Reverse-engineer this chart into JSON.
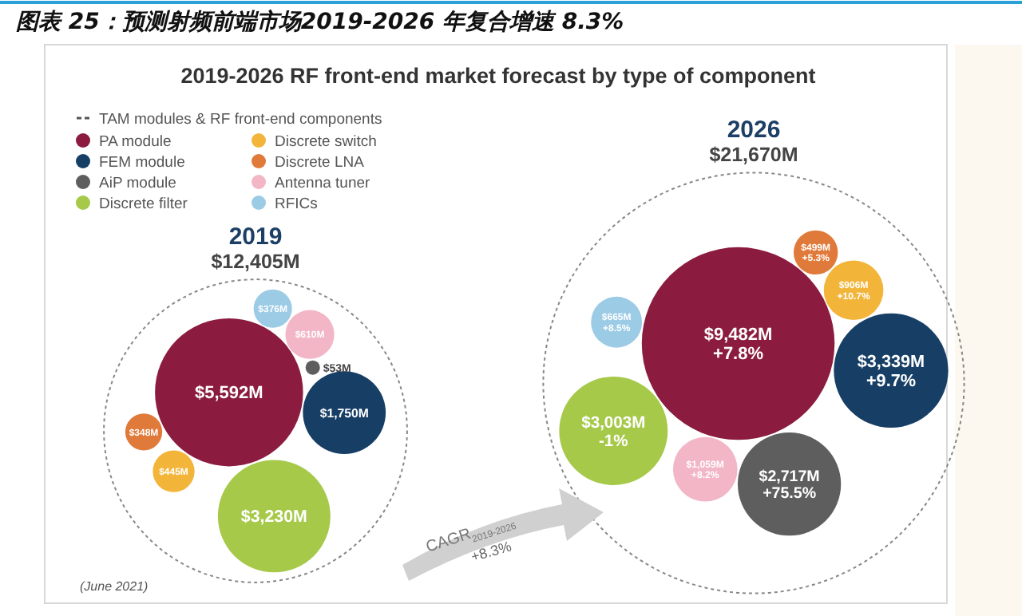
{
  "chart_data": {
    "type": "other",
    "title": "图表 25：预测射频前端市场2019-2026 年复合增速 8.3%",
    "subtitle": "2019-2026 RF front-end market forecast by type of component",
    "legend_title": "TAM modules & RF front-end components",
    "categories": [
      "2019",
      "2026"
    ],
    "series": [
      {
        "name": "PA module",
        "color": "#8b1c3f",
        "values": [
          5592,
          9482
        ],
        "value_labels": [
          "$5,592M",
          "$9,482M"
        ]
      },
      {
        "name": "FEM module",
        "color": "#173f66",
        "values": [
          1750,
          3339
        ],
        "value_labels": [
          "$1,750M",
          "$3,339M"
        ]
      },
      {
        "name": "AiP module",
        "color": "#5e5e5e",
        "values": [
          53,
          2717
        ],
        "value_labels": [
          "$53M",
          "$2,717M"
        ]
      },
      {
        "name": "Discrete filter",
        "color": "#a6c94a",
        "values": [
          3230,
          3003
        ],
        "value_labels": [
          "$3,230M",
          "$3,003M"
        ]
      },
      {
        "name": "Discrete switch",
        "color": "#f2b53a",
        "values": [
          445,
          906
        ],
        "value_labels": [
          "$445M",
          "$906M"
        ]
      },
      {
        "name": "Discrete LNA",
        "color": "#e07a3a",
        "values": [
          348,
          499
        ],
        "value_labels": [
          "$348M",
          "$499M"
        ]
      },
      {
        "name": "Antenna tuner",
        "color": "#f2b6c6",
        "values": [
          610,
          1059
        ],
        "value_labels": [
          "$610M",
          "$1,059M"
        ]
      },
      {
        "name": "RFICs",
        "color": "#9ccbe6",
        "values": [
          376,
          665
        ],
        "value_labels": [
          "$376M",
          "$665M"
        ]
      }
    ],
    "totals": [
      "$12,405M",
      "$21,670M"
    ],
    "legend": "top left",
    "annotations": [
      "+7.8%",
      "+9.7%",
      "+75.5%",
      "-1%",
      "+10.7%",
      "+5.3%",
      "+8.2%",
      "+8.5%",
      "CAGR$_{2019-2026}$",
      "+8.3%",
      "(June 2021)"
    ]
  }
}
